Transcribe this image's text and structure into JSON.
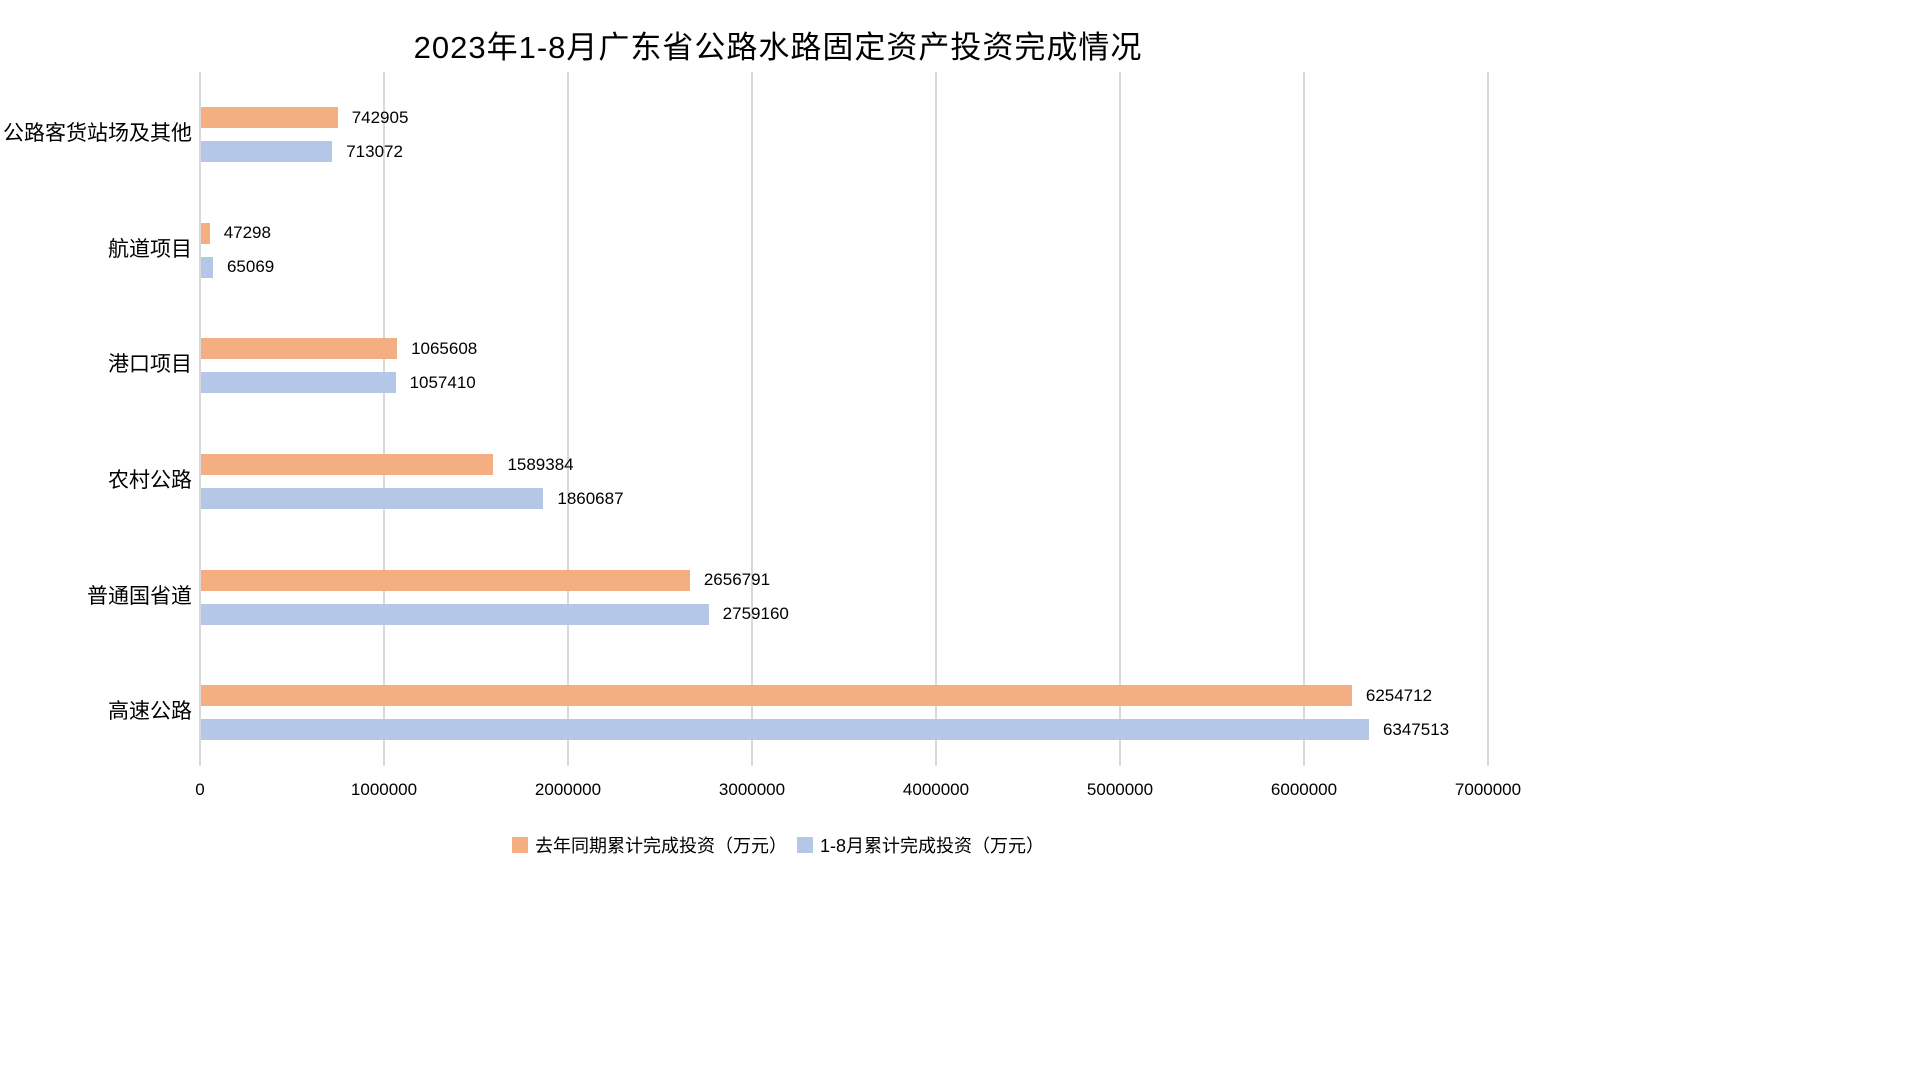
{
  "title": "2023年1-8月广东省公路水路固定资产投资完成情况",
  "chart_data": {
    "type": "bar",
    "orientation": "horizontal",
    "title": "2023年1-8月广东省公路水路固定资产投资完成情况",
    "categories_top_to_bottom": [
      "公路客货站场及其他",
      "航道项目",
      "港口项目",
      "农村公路",
      "普通国省道",
      "高速公路"
    ],
    "series": [
      {
        "name": "去年同期累计完成投资（万元）",
        "color": "#F3AE81",
        "values": [
          742905,
          47298,
          1065608,
          1589384,
          2656791,
          6254712
        ]
      },
      {
        "name": "1-8月累计完成投资（万元）",
        "color": "#B4C7E7",
        "values": [
          713072,
          65069,
          1057410,
          1860687,
          2759160,
          6347513
        ]
      }
    ],
    "xlabel": "",
    "ylabel": "",
    "xlim": [
      0,
      7000000
    ],
    "x_ticks": [
      0,
      1000000,
      2000000,
      3000000,
      4000000,
      5000000,
      6000000,
      7000000
    ],
    "x_tick_labels": [
      "0",
      "1000000",
      "2000000",
      "3000000",
      "4000000",
      "5000000",
      "6000000",
      "7000000"
    ],
    "grid": true,
    "gridline_color": "#D9D9D9",
    "value_labels": true,
    "legend_position": "bottom",
    "background_color": "#FFFFFF",
    "text_color": "#000000"
  }
}
